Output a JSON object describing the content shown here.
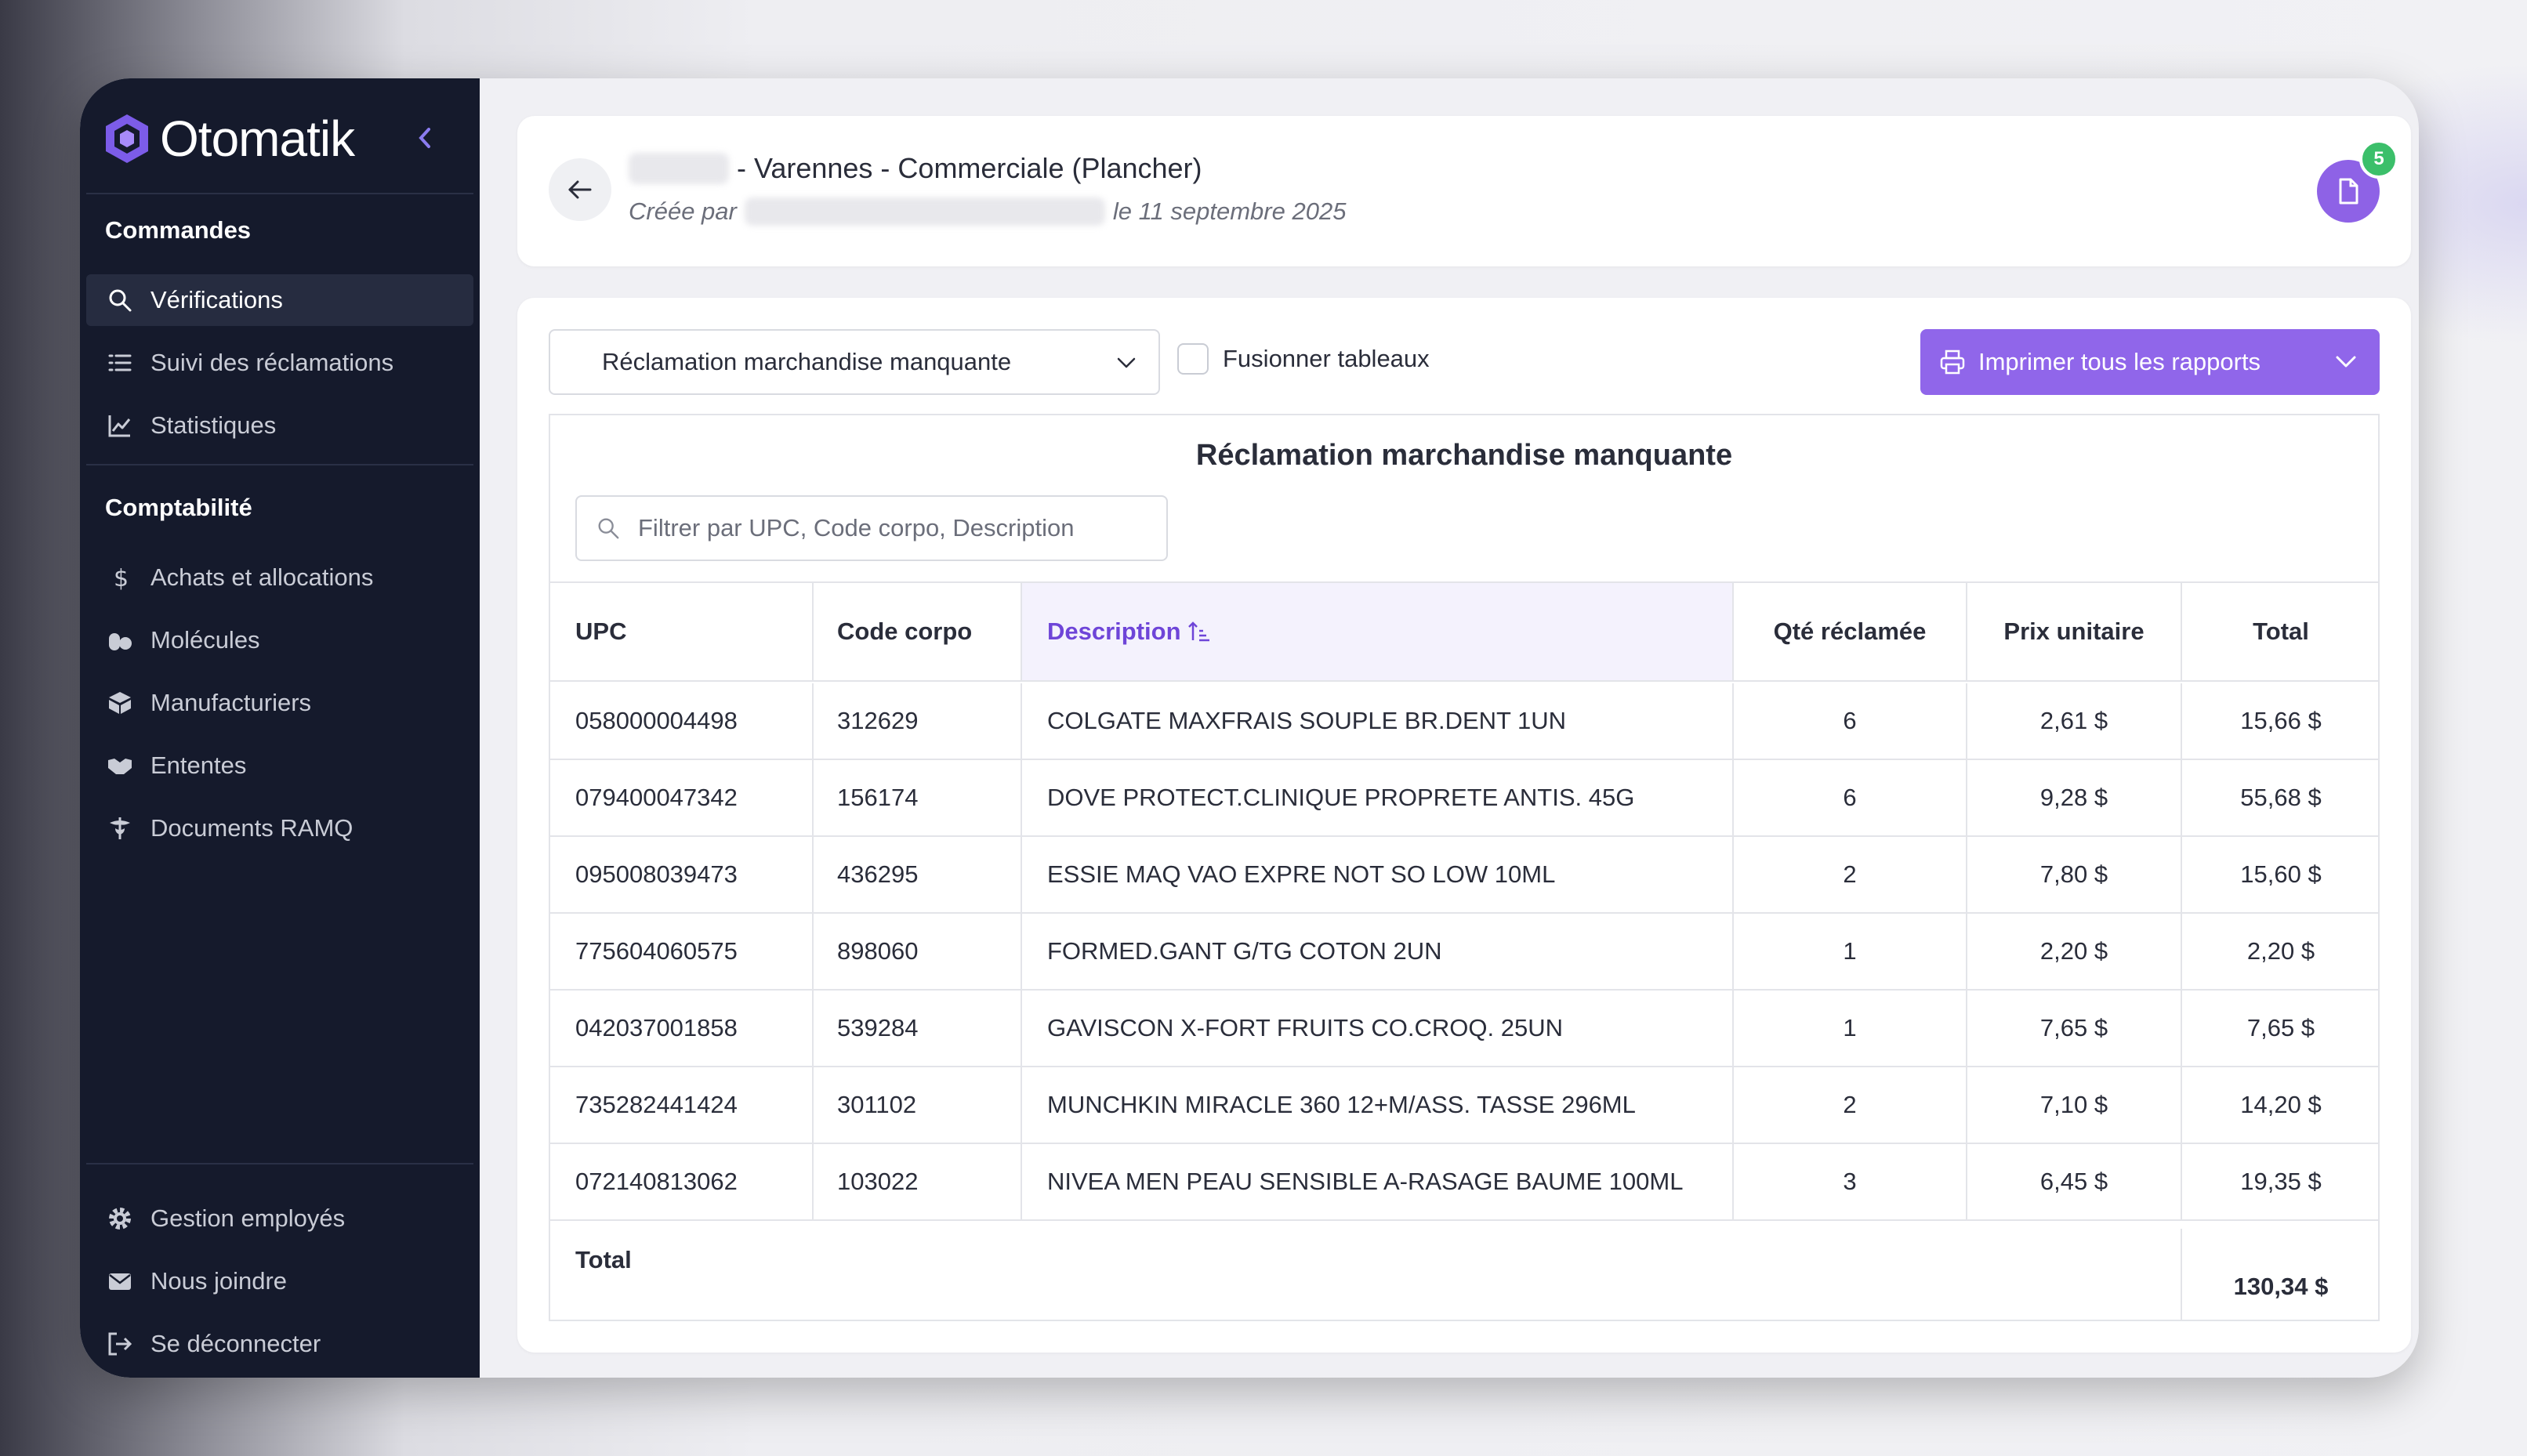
{
  "brand": {
    "name": "Otomatik"
  },
  "colors": {
    "sidebar": "#151a2c",
    "accent": "#9066ea",
    "badge": "#3bbf6a"
  },
  "sidebar": {
    "section1": "Commandes",
    "items1": [
      {
        "label": "Vérifications",
        "icon": "search-icon",
        "active": true
      },
      {
        "label": "Suivi des réclamations",
        "icon": "list-icon"
      },
      {
        "label": "Statistiques",
        "icon": "chart-icon"
      }
    ],
    "section2": "Comptabilité",
    "items2": [
      {
        "label": "Achats et allocations",
        "icon": "dollar-icon"
      },
      {
        "label": "Molécules",
        "icon": "pills-icon"
      },
      {
        "label": "Manufacturiers",
        "icon": "box-icon"
      },
      {
        "label": "Ententes",
        "icon": "handshake-icon"
      },
      {
        "label": "Documents RAMQ",
        "icon": "caduceus-icon"
      }
    ],
    "bottom": [
      {
        "label": "Gestion employés",
        "icon": "gear-icon"
      },
      {
        "label": "Nous joindre",
        "icon": "envelope-icon"
      },
      {
        "label": "Se déconnecter",
        "icon": "logout-icon"
      }
    ]
  },
  "header": {
    "title": "- Varennes - Commerciale (Plancher)",
    "created_by": "Créée par",
    "date": "le 11 septembre 2025",
    "doc_count": "5"
  },
  "toolbar": {
    "report_select": "Réclamation marchandise manquante",
    "merge_label": "Fusionner tableaux",
    "print_label": "Imprimer tous les rapports"
  },
  "table": {
    "title": "Réclamation marchandise manquante",
    "filter_placeholder": "Filtrer par UPC, Code corpo, Description",
    "columns": [
      "UPC",
      "Code corpo",
      "Description",
      "Qté réclamée",
      "Prix unitaire",
      "Total"
    ],
    "rows": [
      [
        "058000004498",
        "312629",
        "COLGATE MAXFRAIS SOUPLE BR.DENT 1UN",
        "6",
        "2,61 $",
        "15,66 $"
      ],
      [
        "079400047342",
        "156174",
        "DOVE PROTECT.CLINIQUE PROPRETE ANTIS. 45G",
        "6",
        "9,28 $",
        "55,68 $"
      ],
      [
        "095008039473",
        "436295",
        "ESSIE MAQ VAO EXPRE NOT SO LOW 10ML",
        "2",
        "7,80 $",
        "15,60 $"
      ],
      [
        "775604060575",
        "898060",
        "FORMED.GANT G/TG COTON 2UN",
        "1",
        "2,20 $",
        "2,20 $"
      ],
      [
        "042037001858",
        "539284",
        "GAVISCON X-FORT FRUITS CO.CROQ. 25UN",
        "1",
        "7,65 $",
        "7,65 $"
      ],
      [
        "735282441424",
        "301102",
        "MUNCHKIN MIRACLE 360 12+M/ASS. TASSE 296ML",
        "2",
        "7,10 $",
        "14,20 $"
      ],
      [
        "072140813062",
        "103022",
        "NIVEA MEN PEAU SENSIBLE A-RASAGE BAUME 100ML",
        "3",
        "6,45 $",
        "19,35 $"
      ]
    ],
    "total_label": "Total",
    "total_value": "130,34 $"
  }
}
